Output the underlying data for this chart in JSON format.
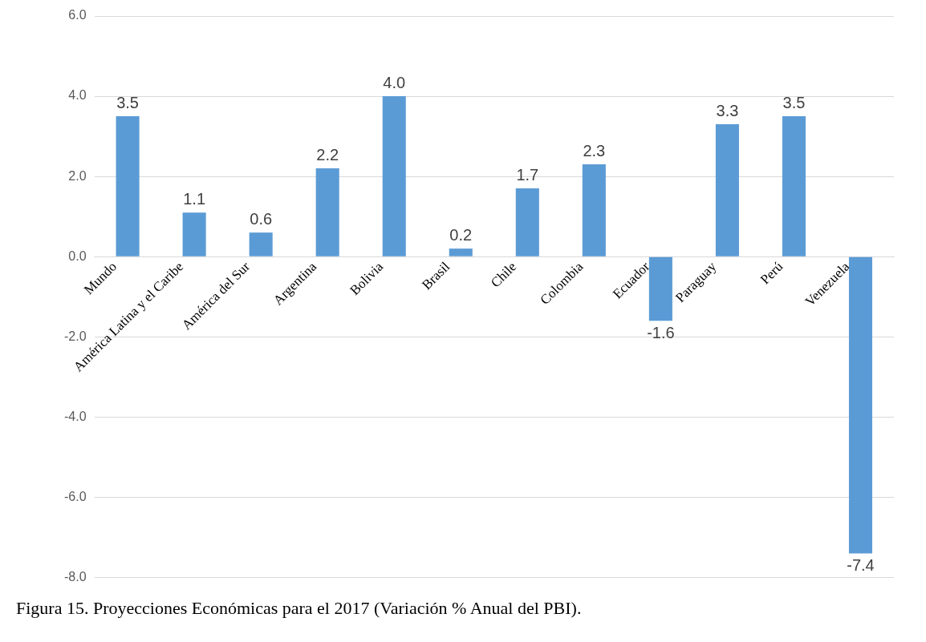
{
  "chart_data": {
    "type": "bar",
    "categories": [
      "Mundo",
      "América Latina y el Caribe",
      "América del Sur",
      "Argentina",
      "Bolivia",
      "Brasil",
      "Chile",
      "Colombia",
      "Ecuador",
      "Paraguay",
      "Perú",
      "Venezuela"
    ],
    "values": [
      3.5,
      1.1,
      0.6,
      2.2,
      4.0,
      0.2,
      1.7,
      2.3,
      -1.6,
      3.3,
      3.5,
      -7.4
    ],
    "color": "#5b9bd5",
    "ylim": [
      -8,
      6
    ],
    "yticks": [
      {
        "value": -8,
        "label": "-8.0"
      },
      {
        "value": -6,
        "label": "-6.0"
      },
      {
        "value": -4,
        "label": "-4.0"
      },
      {
        "value": -2,
        "label": "-2.0"
      },
      {
        "value": 0,
        "label": "0.0"
      },
      {
        "value": 2,
        "label": "2.0"
      },
      {
        "value": 4,
        "label": "4.0"
      },
      {
        "value": 6,
        "label": "6.0"
      }
    ],
    "grid": "y",
    "value_labels": [
      "3.5",
      "1.1",
      "0.6",
      "2.2",
      "4.0",
      "0.2",
      "1.7",
      "2.3",
      "-1.6",
      "3.3",
      "3.5",
      "-7.4"
    ],
    "annotations": [
      "Figura 15. Proyecciones Económicas para el 2017 (Variación % Anual del PBI)."
    ]
  }
}
